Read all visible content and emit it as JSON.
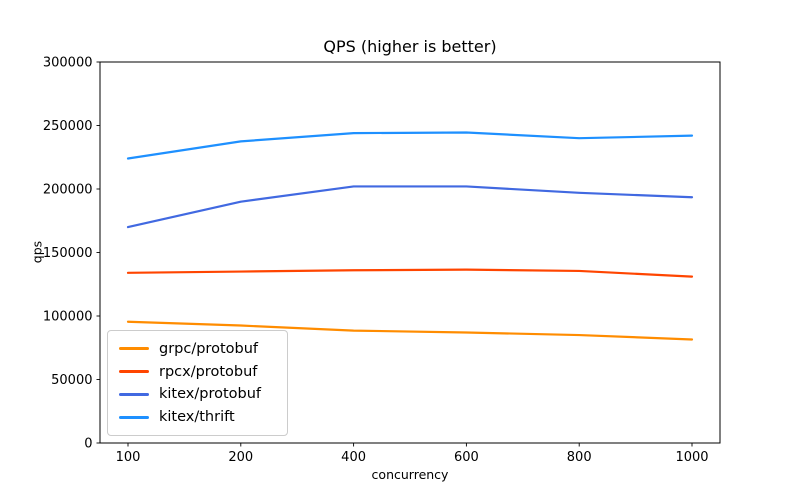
{
  "chart_data": {
    "type": "line",
    "title": "QPS (higher is better)",
    "xlabel": "concurrency",
    "ylabel": "qps",
    "x_axis_type": "categorical",
    "categories": [
      "100",
      "200",
      "400",
      "600",
      "800",
      "1000"
    ],
    "yticks": [
      0,
      50000,
      100000,
      150000,
      200000,
      250000,
      300000
    ],
    "ylim": [
      0,
      300000
    ],
    "grid": false,
    "legend_position": "lower left",
    "axis_color": "#000000",
    "background_color": "#ffffff",
    "series": [
      {
        "name": "grpc/protobuf",
        "color": "#ff8c00",
        "values": [
          95500,
          92500,
          88500,
          87000,
          85000,
          81500
        ]
      },
      {
        "name": "rpcx/protobuf",
        "color": "#ff4500",
        "values": [
          134000,
          135000,
          136000,
          136500,
          135500,
          131000
        ]
      },
      {
        "name": "kitex/protobuf",
        "color": "#4169e1",
        "values": [
          170000,
          190000,
          202000,
          202000,
          197000,
          193500
        ]
      },
      {
        "name": "kitex/thrift",
        "color": "#1e90ff",
        "values": [
          224000,
          237500,
          244000,
          244500,
          240000,
          242000
        ]
      }
    ]
  }
}
